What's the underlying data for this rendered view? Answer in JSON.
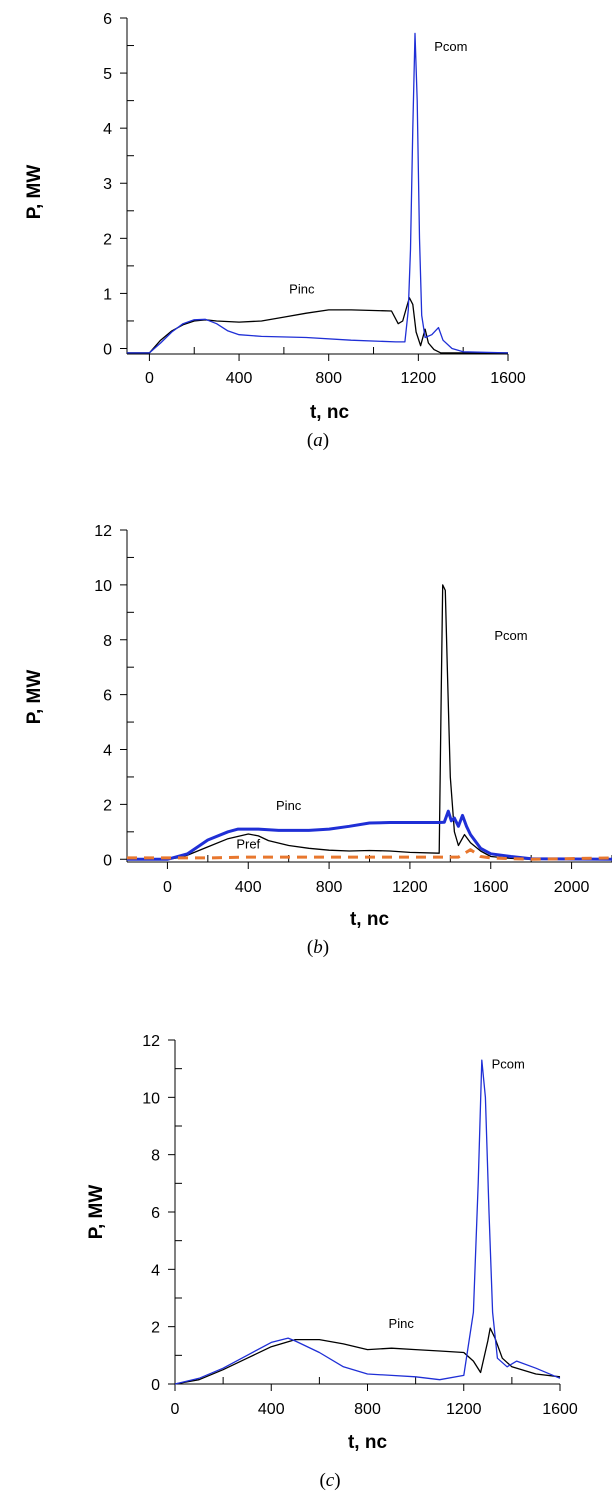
{
  "chart_data": [
    {
      "type": "line",
      "caption": "(a)",
      "xlabel": "t, nc",
      "ylabel": "P, MW",
      "xlim": [
        -100,
        1600
      ],
      "ylim": [
        -0.1,
        6
      ],
      "x_ticks": [
        0,
        400,
        800,
        1200,
        1600
      ],
      "y_ticks": [
        0,
        1,
        2,
        3,
        4,
        5,
        6
      ],
      "grid": false,
      "series": [
        {
          "name": "Pinc",
          "color": "#000000",
          "points": [
            [
              -100,
              -0.08
            ],
            [
              0,
              -0.08
            ],
            [
              50,
              0.15
            ],
            [
              100,
              0.32
            ],
            [
              150,
              0.43
            ],
            [
              200,
              0.5
            ],
            [
              250,
              0.52
            ],
            [
              300,
              0.5
            ],
            [
              400,
              0.48
            ],
            [
              500,
              0.5
            ],
            [
              600,
              0.57
            ],
            [
              700,
              0.64
            ],
            [
              800,
              0.7
            ],
            [
              900,
              0.7
            ],
            [
              1000,
              0.69
            ],
            [
              1080,
              0.68
            ],
            [
              1110,
              0.45
            ],
            [
              1130,
              0.5
            ],
            [
              1150,
              0.78
            ],
            [
              1160,
              0.92
            ],
            [
              1175,
              0.8
            ],
            [
              1190,
              0.3
            ],
            [
              1210,
              0.05
            ],
            [
              1230,
              0.35
            ],
            [
              1245,
              0.1
            ],
            [
              1270,
              -0.02
            ],
            [
              1300,
              -0.08
            ],
            [
              1600,
              -0.08
            ]
          ]
        },
        {
          "name": "Pcom",
          "color": "#1f2fd6",
          "points": [
            [
              -100,
              -0.08
            ],
            [
              0,
              -0.08
            ],
            [
              50,
              0.1
            ],
            [
              100,
              0.3
            ],
            [
              150,
              0.45
            ],
            [
              200,
              0.52
            ],
            [
              250,
              0.53
            ],
            [
              300,
              0.45
            ],
            [
              350,
              0.32
            ],
            [
              400,
              0.25
            ],
            [
              500,
              0.22
            ],
            [
              700,
              0.2
            ],
            [
              900,
              0.15
            ],
            [
              1100,
              0.12
            ],
            [
              1140,
              0.12
            ],
            [
              1155,
              0.7
            ],
            [
              1165,
              1.8
            ],
            [
              1175,
              4.0
            ],
            [
              1185,
              5.72
            ],
            [
              1195,
              4.5
            ],
            [
              1205,
              2.0
            ],
            [
              1215,
              0.6
            ],
            [
              1230,
              0.2
            ],
            [
              1260,
              0.25
            ],
            [
              1290,
              0.38
            ],
            [
              1310,
              0.15
            ],
            [
              1350,
              0
            ],
            [
              1400,
              -0.06
            ],
            [
              1600,
              -0.08
            ]
          ]
        }
      ],
      "annotations": [
        {
          "text": "Pcom",
          "x": 1345,
          "y": 5.4
        },
        {
          "text": "Pinc",
          "x": 680,
          "y": 1.0
        }
      ]
    },
    {
      "type": "line",
      "caption": "(b)",
      "xlabel": "t, nc",
      "ylabel": "P, MW",
      "xlim": [
        -200,
        2200
      ],
      "ylim": [
        -0.1,
        12
      ],
      "x_ticks": [
        0,
        400,
        800,
        1200,
        1600,
        2000
      ],
      "y_ticks": [
        0,
        2,
        4,
        6,
        8,
        10,
        12
      ],
      "grid": false,
      "series": [
        {
          "name": "Pcom",
          "color": "#000000",
          "points": [
            [
              -200,
              0
            ],
            [
              0,
              0
            ],
            [
              50,
              0.05
            ],
            [
              100,
              0.15
            ],
            [
              200,
              0.45
            ],
            [
              300,
              0.75
            ],
            [
              400,
              0.92
            ],
            [
              450,
              0.85
            ],
            [
              500,
              0.68
            ],
            [
              600,
              0.5
            ],
            [
              700,
              0.4
            ],
            [
              800,
              0.33
            ],
            [
              900,
              0.3
            ],
            [
              1000,
              0.32
            ],
            [
              1100,
              0.3
            ],
            [
              1200,
              0.25
            ],
            [
              1345,
              0.22
            ],
            [
              1355,
              6.0
            ],
            [
              1362,
              10.0
            ],
            [
              1375,
              9.8
            ],
            [
              1385,
              7.0
            ],
            [
              1400,
              3.0
            ],
            [
              1420,
              1.0
            ],
            [
              1440,
              0.5
            ],
            [
              1470,
              0.9
            ],
            [
              1500,
              0.6
            ],
            [
              1550,
              0.3
            ],
            [
              1600,
              0.1
            ],
            [
              1700,
              0.03
            ],
            [
              1800,
              0
            ],
            [
              2200,
              0
            ]
          ]
        },
        {
          "name": "Pinc",
          "color": "#1f2fd6",
          "points": [
            [
              -200,
              0
            ],
            [
              0,
              0
            ],
            [
              100,
              0.2
            ],
            [
              200,
              0.7
            ],
            [
              300,
              1.0
            ],
            [
              350,
              1.1
            ],
            [
              450,
              1.1
            ],
            [
              550,
              1.05
            ],
            [
              700,
              1.05
            ],
            [
              800,
              1.1
            ],
            [
              900,
              1.2
            ],
            [
              1000,
              1.32
            ],
            [
              1100,
              1.34
            ],
            [
              1200,
              1.34
            ],
            [
              1345,
              1.34
            ],
            [
              1370,
              1.35
            ],
            [
              1390,
              1.75
            ],
            [
              1405,
              1.4
            ],
            [
              1420,
              1.5
            ],
            [
              1440,
              1.2
            ],
            [
              1460,
              1.6
            ],
            [
              1480,
              1.2
            ],
            [
              1500,
              0.9
            ],
            [
              1550,
              0.4
            ],
            [
              1600,
              0.2
            ],
            [
              1700,
              0.1
            ],
            [
              1800,
              0.02
            ],
            [
              2200,
              0
            ]
          ]
        },
        {
          "name": "Pref",
          "color": "#e8772e",
          "dashed": true,
          "points": [
            [
              -200,
              0.05
            ],
            [
              0,
              0.05
            ],
            [
              200,
              0.05
            ],
            [
              400,
              0.08
            ],
            [
              800,
              0.08
            ],
            [
              1200,
              0.08
            ],
            [
              1440,
              0.08
            ],
            [
              1500,
              0.35
            ],
            [
              1550,
              0.1
            ],
            [
              1600,
              0.05
            ],
            [
              1800,
              0
            ],
            [
              2200,
              0.05
            ]
          ]
        }
      ],
      "annotations": [
        {
          "text": "Pcom",
          "x": 1700,
          "y": 8.0
        },
        {
          "text": "Pinc",
          "x": 600,
          "y": 1.8
        },
        {
          "text": "Pref",
          "x": 400,
          "y": 0.4
        }
      ]
    },
    {
      "type": "line",
      "caption": "(c)",
      "xlabel": "t, nc",
      "ylabel": "P, MW",
      "xlim": [
        0,
        1600
      ],
      "ylim": [
        0,
        12
      ],
      "x_ticks": [
        0,
        400,
        800,
        1200,
        1600
      ],
      "y_ticks": [
        0,
        2,
        4,
        6,
        8,
        10,
        12
      ],
      "grid": false,
      "series": [
        {
          "name": "Pinc",
          "color": "#000000",
          "points": [
            [
              0,
              0
            ],
            [
              100,
              0.15
            ],
            [
              200,
              0.5
            ],
            [
              300,
              0.9
            ],
            [
              400,
              1.3
            ],
            [
              500,
              1.55
            ],
            [
              600,
              1.55
            ],
            [
              700,
              1.4
            ],
            [
              800,
              1.2
            ],
            [
              900,
              1.25
            ],
            [
              1000,
              1.2
            ],
            [
              1100,
              1.15
            ],
            [
              1200,
              1.1
            ],
            [
              1240,
              0.8
            ],
            [
              1270,
              0.4
            ],
            [
              1300,
              1.5
            ],
            [
              1310,
              1.95
            ],
            [
              1330,
              1.6
            ],
            [
              1360,
              0.9
            ],
            [
              1400,
              0.6
            ],
            [
              1500,
              0.35
            ],
            [
              1600,
              0.25
            ]
          ]
        },
        {
          "name": "Pcom",
          "color": "#1f2fd6",
          "points": [
            [
              0,
              0
            ],
            [
              100,
              0.2
            ],
            [
              200,
              0.55
            ],
            [
              300,
              1.0
            ],
            [
              400,
              1.45
            ],
            [
              470,
              1.6
            ],
            [
              500,
              1.5
            ],
            [
              600,
              1.1
            ],
            [
              700,
              0.6
            ],
            [
              800,
              0.35
            ],
            [
              900,
              0.3
            ],
            [
              1000,
              0.25
            ],
            [
              1100,
              0.15
            ],
            [
              1200,
              0.3
            ],
            [
              1240,
              2.5
            ],
            [
              1260,
              7.0
            ],
            [
              1275,
              11.3
            ],
            [
              1290,
              10.0
            ],
            [
              1305,
              6.0
            ],
            [
              1320,
              2.5
            ],
            [
              1340,
              0.9
            ],
            [
              1380,
              0.6
            ],
            [
              1420,
              0.8
            ],
            [
              1500,
              0.55
            ],
            [
              1600,
              0.2
            ]
          ]
        }
      ],
      "annotations": [
        {
          "text": "Pcom",
          "x": 1385,
          "y": 11.0
        },
        {
          "text": "Pinc",
          "x": 940,
          "y": 1.95
        }
      ]
    }
  ]
}
